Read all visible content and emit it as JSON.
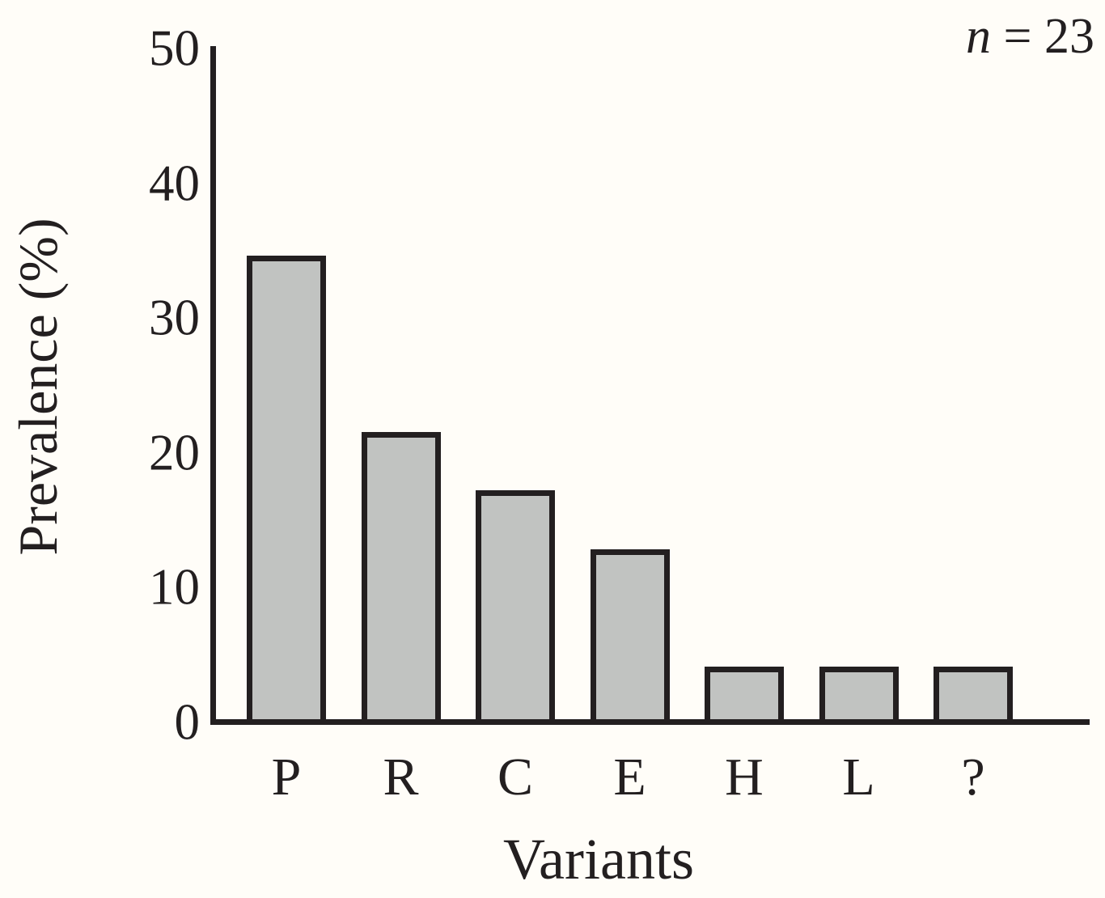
{
  "page": {
    "background": "#fffdf8",
    "ink": "#231f20"
  },
  "chart_data": {
    "type": "bar",
    "title": "",
    "xlabel": "Variants",
    "ylabel": "Prevalence (%)",
    "annotation": {
      "symbol": "n",
      "rest": " = 23"
    },
    "categories": [
      "P",
      "R",
      "C",
      "E",
      "H",
      "L",
      "?"
    ],
    "values": [
      34.8,
      21.7,
      17.4,
      13.0,
      4.3,
      4.3,
      4.3
    ],
    "sample_size": 23,
    "ylim": [
      0,
      50
    ],
    "yticks": [
      0,
      10,
      20,
      30,
      40,
      50
    ],
    "grid": false,
    "legend": "none",
    "bar_fill": "#c1c3c1",
    "bar_border": "#231f20",
    "axis_color": "#231f20"
  }
}
